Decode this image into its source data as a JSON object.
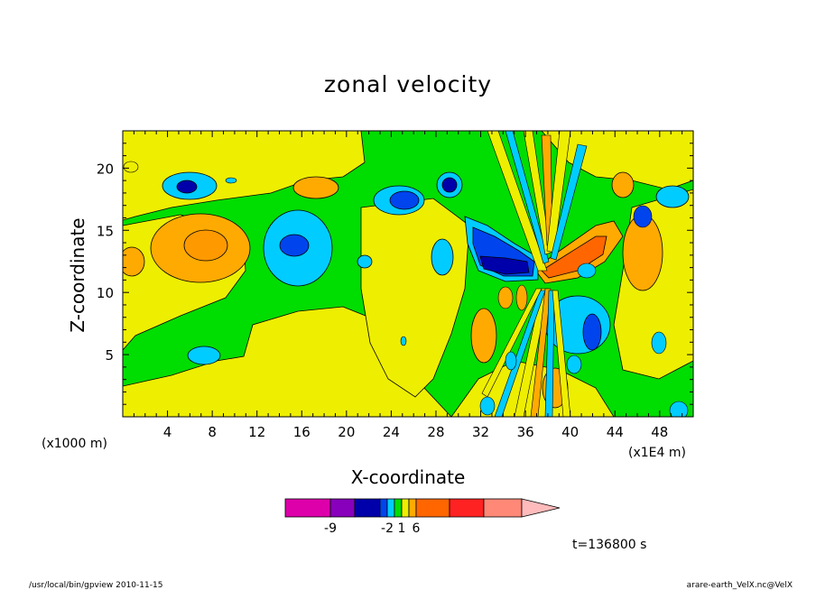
{
  "chart_data": {
    "type": "heatmap",
    "title": "zonal velocity",
    "xlabel": "X-coordinate",
    "ylabel": "Z-coordinate",
    "x_unit_left": "(x1000 m)",
    "x_unit_right": "(x1E4 m)",
    "xlim": [
      0,
      51
    ],
    "ylim": [
      0,
      23
    ],
    "x_ticks": [
      "4",
      "8",
      "12",
      "16",
      "20",
      "24",
      "28",
      "32",
      "36",
      "40",
      "44",
      "48"
    ],
    "y_ticks": [
      "5",
      "10",
      "15",
      "20"
    ],
    "time_label": "t=136800 s",
    "colorbar": {
      "labels": [
        "-9",
        "-2",
        "1",
        "6"
      ],
      "colors": [
        "#dd00aa",
        "#8800bb",
        "#0000aa",
        "#0044ee",
        "#00ccff",
        "#00dd00",
        "#eeee00",
        "#ffaa00",
        "#ff6600",
        "#ff2222",
        "#ff8877",
        "#ffbbbb"
      ]
    },
    "features": [
      {
        "x": 38,
        "z": 12,
        "value": 8
      },
      {
        "x": 35,
        "z": 12,
        "value": -9
      },
      {
        "x": 8,
        "z": 13.5,
        "value": 3
      },
      {
        "x": 15,
        "z": 14,
        "value": -6
      },
      {
        "x": 6,
        "z": 18.5,
        "value": -6
      },
      {
        "x": 25,
        "z": 17,
        "value": -6
      },
      {
        "x": 42,
        "z": 7,
        "value": -6
      },
      {
        "x": 32,
        "z": 7,
        "value": 3
      }
    ]
  },
  "footer": {
    "left": "/usr/local/bin/gpview   2010-11-15",
    "right": "arare-earth_VelX.nc@VelX"
  }
}
